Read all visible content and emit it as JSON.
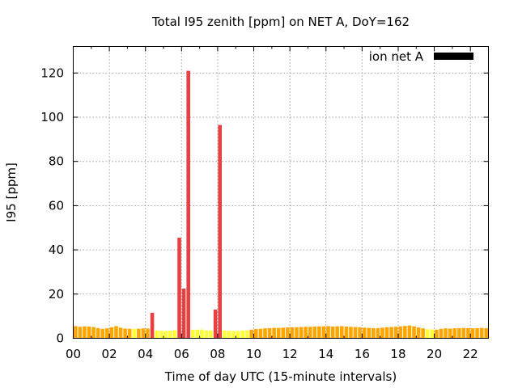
{
  "chart_data": {
    "type": "bar",
    "title": "Total I95 zenith [ppm] on NET A, DoY=162",
    "xlabel": "Time of day UTC (15-minute intervals)",
    "ylabel": "I95 [ppm]",
    "xlim": [
      0,
      23
    ],
    "ylim": [
      0,
      132
    ],
    "xticks": [
      "00",
      "02",
      "04",
      "06",
      "08",
      "10",
      "12",
      "14",
      "16",
      "18",
      "20",
      "22"
    ],
    "xtick_values": [
      0,
      2,
      4,
      6,
      8,
      10,
      12,
      14,
      16,
      18,
      20,
      22
    ],
    "yticks": [
      "0",
      "20",
      "40",
      "60",
      "80",
      "100",
      "120"
    ],
    "ytick_values": [
      0,
      20,
      40,
      60,
      80,
      100,
      120
    ],
    "grid": true,
    "legend": {
      "position": "top-right",
      "entries": [
        {
          "label": "ion net A",
          "color": "#000000"
        }
      ]
    },
    "bar_interval_hours": 0.25,
    "colors": {
      "low": "#ffff33",
      "medium": "#ffa500",
      "high": "#e84040",
      "frame": "#000000",
      "grid": "#a0a0a0"
    },
    "series": [
      {
        "values": [
          5.5,
          5.2,
          5.4,
          5.3,
          5.1,
          4.6,
          4.3,
          4.5,
          5.0,
          5.5,
          4.8,
          4.4,
          4.3,
          4.2,
          4.3,
          4.5,
          4.4,
          11.5,
          3.5,
          3.4,
          3.3,
          3.4,
          3.6,
          45.5,
          22.5,
          121,
          3.8,
          3.9,
          4.0,
          3.6,
          3.5,
          13.0,
          96.5,
          3.5,
          3.4,
          3.3,
          3.3,
          3.5,
          3.6,
          3.9,
          4.2,
          4.3,
          4.5,
          4.6,
          4.7,
          4.7,
          4.8,
          4.9,
          5.0,
          5.0,
          5.1,
          5.2,
          5.2,
          5.3,
          5.4,
          5.4,
          5.5,
          5.3,
          5.4,
          5.5,
          5.3,
          5.2,
          5.1,
          5.0,
          4.8,
          4.7,
          4.6,
          4.6,
          4.8,
          5.0,
          5.1,
          5.2,
          5.4,
          5.6,
          5.8,
          5.4,
          4.9,
          4.5,
          4.1,
          4.0,
          3.9,
          4.3,
          4.5,
          4.4,
          4.5,
          4.6,
          4.7,
          4.6,
          4.5,
          4.6,
          4.7,
          4.6
        ],
        "levels": [
          "medium",
          "medium",
          "medium",
          "medium",
          "medium",
          "medium",
          "medium",
          "medium",
          "medium",
          "medium",
          "medium",
          "medium",
          "medium",
          "low",
          "medium",
          "medium",
          "medium",
          "high",
          "low",
          "low",
          "low",
          "low",
          "low",
          "high",
          "high",
          "high",
          "low",
          "low",
          "low",
          "low",
          "low",
          "high",
          "high",
          "low",
          "low",
          "low",
          "low",
          "low",
          "low",
          "medium",
          "medium",
          "medium",
          "medium",
          "medium",
          "medium",
          "medium",
          "medium",
          "medium",
          "medium",
          "medium",
          "medium",
          "medium",
          "medium",
          "medium",
          "medium",
          "medium",
          "medium",
          "medium",
          "medium",
          "medium",
          "medium",
          "medium",
          "medium",
          "medium",
          "medium",
          "medium",
          "medium",
          "medium",
          "medium",
          "medium",
          "medium",
          "medium",
          "medium",
          "medium",
          "medium",
          "medium",
          "medium",
          "medium",
          "low",
          "low",
          "medium",
          "medium",
          "medium",
          "medium",
          "medium",
          "medium",
          "medium",
          "medium",
          "medium",
          "medium",
          "medium",
          "medium"
        ]
      }
    ]
  }
}
